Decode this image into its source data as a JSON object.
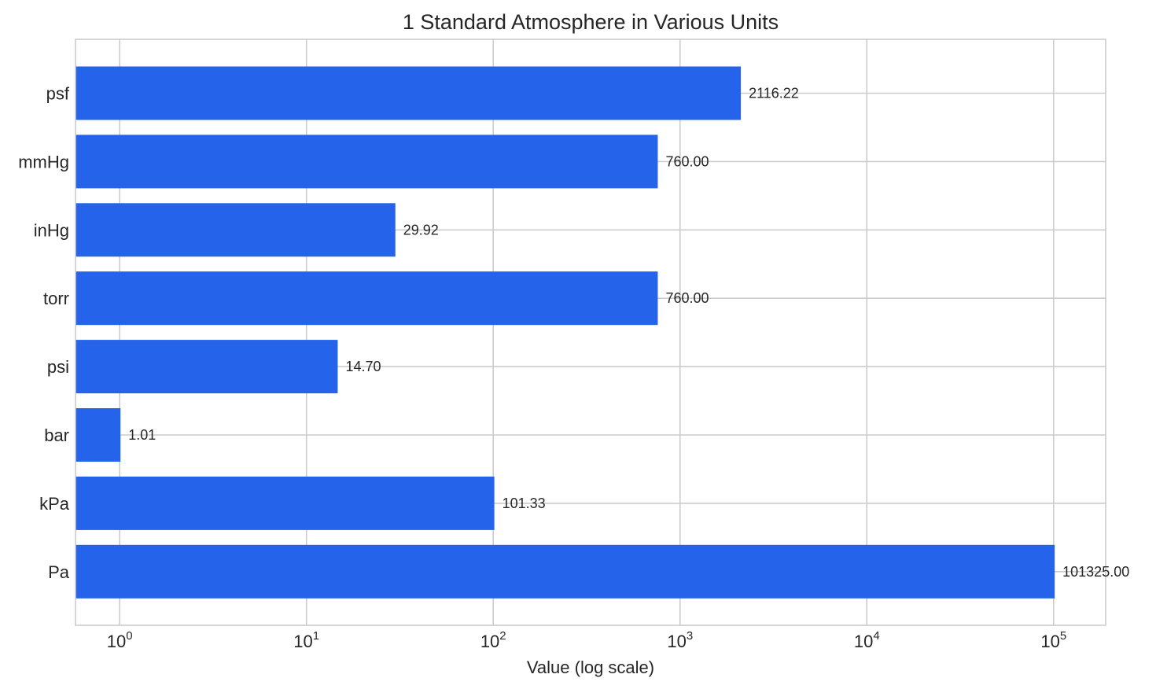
{
  "chart_data": {
    "type": "bar",
    "orientation": "horizontal",
    "title": "1 Standard Atmosphere in Various Units",
    "xlabel": "Value (log scale)",
    "ylabel": "",
    "xscale": "log",
    "xlim": [
      0.58,
      190000
    ],
    "categories": [
      "Pa",
      "kPa",
      "bar",
      "psi",
      "torr",
      "inHg",
      "mmHg",
      "psf"
    ],
    "values": [
      101325.0,
      101.33,
      1.01,
      14.7,
      760.0,
      29.92,
      760.0,
      2116.22
    ],
    "value_labels": [
      "101325.00",
      "101.33",
      "1.01",
      "14.70",
      "760.00",
      "29.92",
      "760.00",
      "2116.22"
    ],
    "x_ticks": [
      {
        "value": 1,
        "base": "10",
        "exp": "0"
      },
      {
        "value": 10,
        "base": "10",
        "exp": "1"
      },
      {
        "value": 100,
        "base": "10",
        "exp": "2"
      },
      {
        "value": 1000,
        "base": "10",
        "exp": "3"
      },
      {
        "value": 10000,
        "base": "10",
        "exp": "4"
      },
      {
        "value": 100000,
        "base": "10",
        "exp": "5"
      }
    ],
    "bar_color": "#2563eb",
    "grid": true,
    "legend": "none"
  }
}
